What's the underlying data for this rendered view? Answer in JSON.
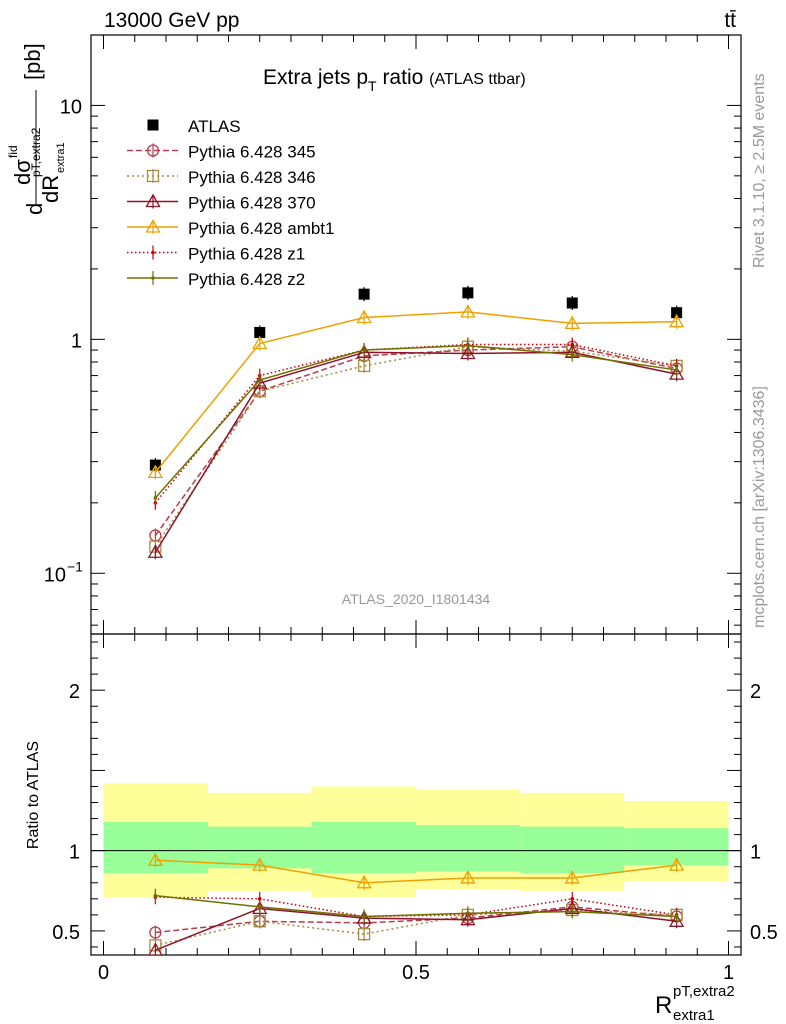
{
  "header": {
    "energy_label": "13000 GeV pp",
    "process_label": "tt̄"
  },
  "side_labels": {
    "rivet": "Rivet 3.1.10, ≥ 2.5M events",
    "mcplots": "mcplots.cern.ch [arXiv:1306.3436]"
  },
  "analysis_id": "ATLAS_2020_I1801434",
  "chart_data": [
    {
      "type": "line",
      "panel": "main",
      "title": "Extra jets p",
      "title_sub": "T",
      "title_rest": " ratio ",
      "title_small": "(ATLAS ttbar)",
      "ylabel_parts": {
        "d1": "d",
        "sigma": "dσ",
        "fid": "fid",
        "sub": "pT,extra2",
        "dR": "dR",
        "dR_sub": "extra1",
        "unit": "[pb]"
      },
      "yscale": "log",
      "ylim": [
        0.055,
        20
      ],
      "y_ticklabels": [
        "10",
        "1",
        "10"
      ],
      "y_ticklabel_exp": "−1",
      "xlim": [
        -0.02,
        1.02
      ],
      "x": [
        0.083,
        0.25,
        0.417,
        0.583,
        0.75,
        0.917
      ],
      "series": [
        {
          "name": "ATLAS",
          "color": "#000000",
          "marker": "square-filled",
          "dash": "none",
          "values": [
            0.29,
            1.07,
            1.56,
            1.58,
            1.43,
            1.3
          ]
        },
        {
          "name": "Pythia 6.428 345",
          "color": "#b83c4c",
          "marker": "circle",
          "dash": "6,3",
          "values": [
            0.145,
            0.6,
            0.85,
            0.9,
            0.93,
            0.75
          ]
        },
        {
          "name": "Pythia 6.428 346",
          "color": "#a88a40",
          "marker": "square",
          "dash": "2,3",
          "values": [
            0.13,
            0.6,
            0.77,
            0.93,
            0.89,
            0.77
          ]
        },
        {
          "name": "Pythia 6.428 370",
          "color": "#8c1428",
          "marker": "triangle",
          "dash": "none",
          "values": [
            0.123,
            0.65,
            0.88,
            0.87,
            0.88,
            0.71
          ]
        },
        {
          "name": "Pythia 6.428 ambt1",
          "color": "#f0a000",
          "marker": "triangle",
          "dash": "none",
          "values": [
            0.27,
            0.96,
            1.24,
            1.31,
            1.17,
            1.19
          ]
        },
        {
          "name": "Pythia 6.428 z1",
          "color": "#c80000",
          "marker": "dot",
          "dash": "1.5,2.5",
          "values": [
            0.2,
            0.7,
            0.9,
            0.95,
            0.95,
            0.77
          ]
        },
        {
          "name": "Pythia 6.428 z2",
          "color": "#6e7000",
          "marker": "dot",
          "dash": "none",
          "values": [
            0.21,
            0.67,
            0.9,
            0.94,
            0.86,
            0.74
          ]
        }
      ]
    },
    {
      "type": "line",
      "panel": "ratio",
      "ylabel": "Ratio to ATLAS",
      "ylim": [
        0.35,
        2.35
      ],
      "y_ticklabels": [
        "2",
        "1",
        "0.5"
      ],
      "xlabel_main": "R",
      "xlabel_sup": "pT,extra2",
      "xlabel_sub": "extra1",
      "x_ticklabels": [
        "0",
        "0.5",
        "1"
      ],
      "bins": [
        [
          0.0,
          0.167
        ],
        [
          0.167,
          0.333
        ],
        [
          0.333,
          0.5
        ],
        [
          0.5,
          0.667
        ],
        [
          0.667,
          0.833
        ],
        [
          0.833,
          1.0
        ]
      ],
      "band_yellow": [
        [
          0.71,
          1.42
        ],
        [
          0.75,
          1.36
        ],
        [
          0.71,
          1.4
        ],
        [
          0.76,
          1.38
        ],
        [
          0.75,
          1.36
        ],
        [
          0.81,
          1.31
        ]
      ],
      "band_green": [
        [
          0.86,
          1.18
        ],
        [
          0.89,
          1.15
        ],
        [
          0.86,
          1.18
        ],
        [
          0.87,
          1.16
        ],
        [
          0.86,
          1.15
        ],
        [
          0.91,
          1.14
        ]
      ],
      "x": [
        0.083,
        0.25,
        0.417,
        0.583,
        0.75,
        0.917
      ],
      "series": [
        {
          "name": "Pythia 6.428 345",
          "values": [
            0.49,
            0.56,
            0.55,
            0.58,
            0.65,
            0.59
          ]
        },
        {
          "name": "Pythia 6.428 346",
          "values": [
            0.41,
            0.56,
            0.48,
            0.6,
            0.63,
            0.6
          ]
        },
        {
          "name": "Pythia 6.428 370",
          "values": [
            0.38,
            0.64,
            0.58,
            0.57,
            0.64,
            0.56
          ]
        },
        {
          "name": "Pythia 6.428 ambt1",
          "values": [
            0.94,
            0.91,
            0.8,
            0.83,
            0.83,
            0.91
          ]
        },
        {
          "name": "Pythia 6.428 z1",
          "values": [
            0.71,
            0.7,
            0.59,
            0.6,
            0.7,
            0.6
          ]
        },
        {
          "name": "Pythia 6.428 z2",
          "values": [
            0.72,
            0.65,
            0.59,
            0.61,
            0.62,
            0.59
          ]
        }
      ]
    }
  ]
}
